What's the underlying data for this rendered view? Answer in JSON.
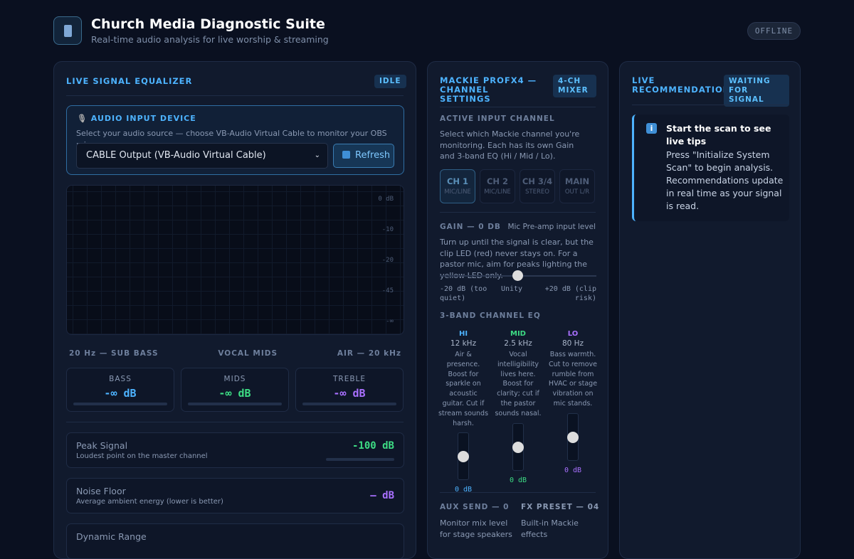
{
  "header": {
    "title": "Church Media Diagnostic Suite",
    "subtitle": "Real-time audio analysis for live worship & streaming",
    "status": "OFFLINE"
  },
  "equalizer": {
    "title": "LIVE SIGNAL EQUALIZER",
    "badge": "IDLE",
    "device": {
      "title": "AUDIO INPUT DEVICE",
      "description": "Select your audio source — choose VB-Audio Virtual Cable to monitor your OBS mix.",
      "selected": "CABLE Output (VB-Audio Virtual Cable)",
      "button": "Refresh"
    },
    "spectrum_labels": [
      "0 dB",
      "-10",
      "-20",
      "-45",
      "-∞"
    ],
    "frequency_labels": [
      "20 Hz — SUB BASS",
      "VOCAL MIDS",
      "AIR — 20 kHz"
    ],
    "meters": [
      {
        "label": "BASS",
        "value": "-∞ dB"
      },
      {
        "label": "MIDS",
        "value": "-∞ dB"
      },
      {
        "label": "TREBLE",
        "value": "-∞ dB"
      }
    ],
    "stats": [
      {
        "label": "Peak Signal",
        "description": "Loudest point on the master channel",
        "value": "-100 dB"
      },
      {
        "label": "Noise Floor",
        "description": "Average ambient energy (lower is better)",
        "value": "— dB"
      },
      {
        "label": "Dynamic Range"
      }
    ]
  },
  "mixer": {
    "title": "MACKIE PROFX4 — CHANNEL SETTINGS",
    "badge": "4-CH MIXER",
    "channel": {
      "title": "ACTIVE INPUT CHANNEL",
      "description": "Select which Mackie channel you're monitoring. Each has its own Gain and 3-band EQ (Hi / Mid / Lo).",
      "buttons": [
        {
          "name": "CH 1",
          "sub": "MIC/LINE"
        },
        {
          "name": "CH 2",
          "sub": "MIC/LINE"
        },
        {
          "name": "CH 3/4",
          "sub": "STEREO"
        },
        {
          "name": "MAIN",
          "sub": "OUT L/R"
        }
      ]
    },
    "gain": {
      "title": "GAIN — 0 DB",
      "hint": "Mic Pre-amp input level",
      "description": "Turn up until the signal is clear, but the clip LED (red) never stays on. For a pastor mic, aim for peaks lighting the yellow LED only.",
      "scale": [
        "-20 dB (too quiet)",
        "Unity",
        "+20 dB (clip risk)"
      ]
    },
    "eq": {
      "title": "3-BAND CHANNEL EQ",
      "bands": [
        {
          "name": "HI",
          "freq": "12 kHz",
          "description": "Air & presence. Boost for sparkle on acoustic guitar. Cut if stream sounds harsh.",
          "value": "0 dB"
        },
        {
          "name": "MID",
          "freq": "2.5 kHz",
          "description": "Vocal intelligibility lives here. Boost for clarity; cut if the pastor sounds nasal.",
          "value": "0 dB"
        },
        {
          "name": "LO",
          "freq": "80 Hz",
          "description": "Bass warmth. Cut to remove rumble from HVAC or stage vibration on mic stands.",
          "value": "0 dB"
        }
      ]
    },
    "aux": {
      "title": "AUX SEND — 0",
      "description": "Monitor mix level for stage speakers"
    },
    "fx": {
      "title": "FX PRESET — 04",
      "description": "Built-in Mackie effects"
    }
  },
  "recommendations": {
    "title": "LIVE RECOMMENDATIONS",
    "badge": "WAITING FOR SIGNAL",
    "tip": {
      "title": "Start the scan to see live tips",
      "body": "Press \"Initialize System Scan\" to begin analysis. Recommendations update in real time as your signal is read."
    }
  }
}
